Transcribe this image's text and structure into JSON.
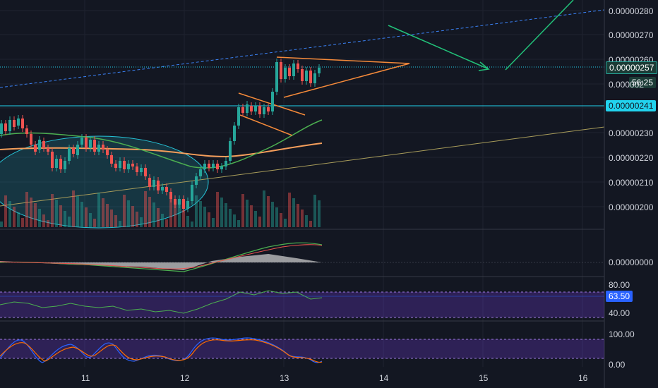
{
  "chart_data": {
    "type": "candlestick",
    "instrument_scale": "price",
    "main_pane": {
      "ylim": [
        1.95e-06,
        2.83e-06
      ],
      "y_ticks": [
        "0.00000280",
        "0.00000270",
        "0.00000260",
        "0.00000230",
        "0.00000220",
        "0.00000210",
        "0.00000200"
      ],
      "x_ticks": [
        "11",
        "12",
        "13",
        "14",
        "15",
        "16"
      ],
      "current_price": "0.00000257",
      "support_level": "0.00000241",
      "support_value": 2.41e-06,
      "countdown": "56:25",
      "partial_tick": "0.000002",
      "candles_x": [
        10.0,
        11.0,
        12.0,
        13.0,
        13.4
      ],
      "series": [
        {
          "name": "",
          "color": "#26a69a",
          "kind": "up-candles"
        },
        {
          "name": "",
          "color": "#ef5350",
          "kind": "down-candles"
        }
      ],
      "colors": {
        "up": "#26a69a",
        "down": "#ef5350",
        "support": "#22d3ee",
        "pattern": "#f58a3a",
        "projection": "#22c27a",
        "channel": "#3b82f6"
      }
    },
    "macd_pane": {
      "ylim": [
        -2e-08,
        2e-08
      ],
      "y_ticks": [
        "0.00000000"
      ]
    },
    "rsi_pane": {
      "ylim": [
        30,
        90
      ],
      "y_ticks": [
        "80.00",
        "40.00"
      ],
      "current": "63.50",
      "band": [
        40,
        80
      ]
    },
    "stoch_pane": {
      "ylim": [
        -10,
        115
      ],
      "y_ticks": [
        "100.00",
        "0.00"
      ],
      "band": [
        20,
        80
      ]
    }
  }
}
